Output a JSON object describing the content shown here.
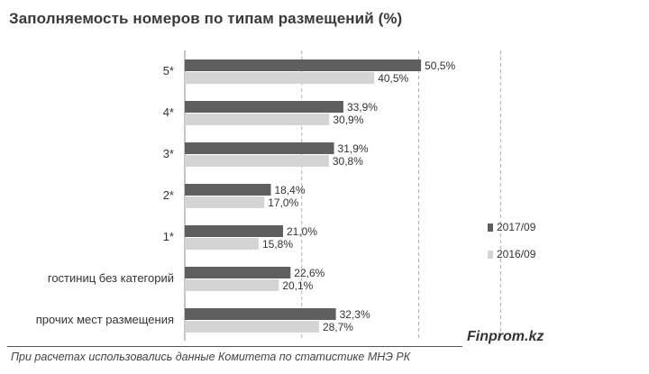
{
  "chart_data": {
    "type": "bar",
    "orientation": "horizontal",
    "title": "Заполняемость  номеров по типам размещений (%)",
    "categories": [
      "5*",
      "4*",
      "3*",
      "2*",
      "1*",
      "гостиниц без категорий",
      "прочих мест размещения"
    ],
    "series": [
      {
        "name": "2017/09",
        "color": "#5f5f5f",
        "values": [
          50.5,
          33.9,
          31.9,
          18.4,
          21.0,
          22.6,
          32.3
        ],
        "labels": [
          "50,5%",
          "33,9%",
          "31,9%",
          "18,4%",
          "21,0%",
          "22,6%",
          "32,3%"
        ]
      },
      {
        "name": "2016/09",
        "color": "#d4d4d4",
        "values": [
          40.5,
          30.9,
          30.8,
          17.0,
          15.8,
          20.1,
          28.7
        ],
        "labels": [
          "40,5%",
          "30,9%",
          "30,8%",
          "17,0%",
          "15,8%",
          "20,1%",
          "28,7%"
        ]
      }
    ],
    "xlim": [
      0,
      75
    ],
    "grid": "vertical dashed",
    "legend_position": "right"
  },
  "footer": {
    "source": "При расчетах использовались данные Комитета по статистике МНЭ РК",
    "brand": "Finprom.kz"
  }
}
